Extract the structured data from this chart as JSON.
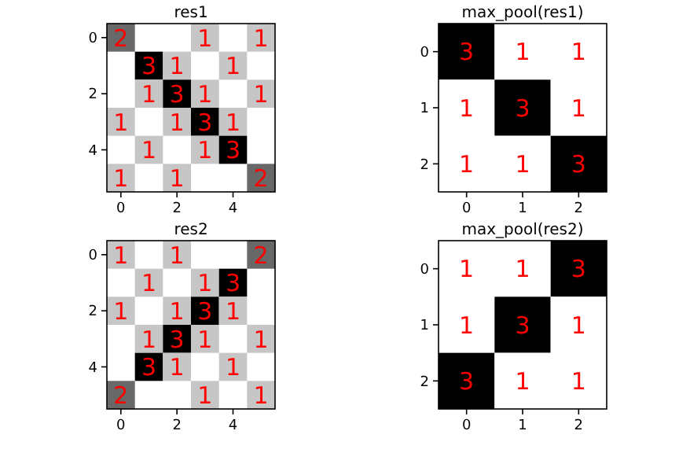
{
  "chart_data": [
    {
      "type": "heatmap",
      "title": "res1",
      "categories": [
        "0",
        null,
        "2",
        null,
        "4",
        null
      ],
      "y_categories": [
        "0",
        null,
        "2",
        null,
        "4",
        null
      ],
      "data_labels": true,
      "cells": [
        [
          2,
          null,
          null,
          1,
          null,
          1
        ],
        [
          null,
          3,
          1,
          null,
          1,
          null
        ],
        [
          null,
          1,
          3,
          1,
          null,
          1
        ],
        [
          1,
          null,
          1,
          3,
          1,
          null
        ],
        [
          null,
          1,
          null,
          1,
          3,
          null
        ],
        [
          1,
          null,
          1,
          null,
          null,
          2
        ]
      ]
    },
    {
      "type": "heatmap",
      "title": "max_pool(res1)",
      "categories": [
        "0",
        "1",
        "2"
      ],
      "y_categories": [
        "0",
        "1",
        "2"
      ],
      "data_labels": true,
      "cells": [
        [
          3,
          1,
          1
        ],
        [
          1,
          3,
          1
        ],
        [
          1,
          1,
          3
        ]
      ]
    },
    {
      "type": "heatmap",
      "title": "res2",
      "categories": [
        "0",
        null,
        "2",
        null,
        "4",
        null
      ],
      "y_categories": [
        "0",
        null,
        "2",
        null,
        "4",
        null
      ],
      "data_labels": true,
      "cells": [
        [
          1,
          null,
          1,
          null,
          null,
          2
        ],
        [
          null,
          1,
          null,
          1,
          3,
          null
        ],
        [
          1,
          null,
          1,
          3,
          1,
          null
        ],
        [
          null,
          1,
          3,
          1,
          null,
          1
        ],
        [
          null,
          3,
          1,
          null,
          1,
          null
        ],
        [
          2,
          null,
          null,
          1,
          null,
          1
        ]
      ]
    },
    {
      "type": "heatmap",
      "title": "max_pool(res2)",
      "categories": [
        "0",
        "1",
        "2"
      ],
      "y_categories": [
        "0",
        "1",
        "2"
      ],
      "data_labels": true,
      "cells": [
        [
          1,
          1,
          3
        ],
        [
          1,
          3,
          1
        ],
        [
          3,
          1,
          1
        ]
      ]
    }
  ]
}
